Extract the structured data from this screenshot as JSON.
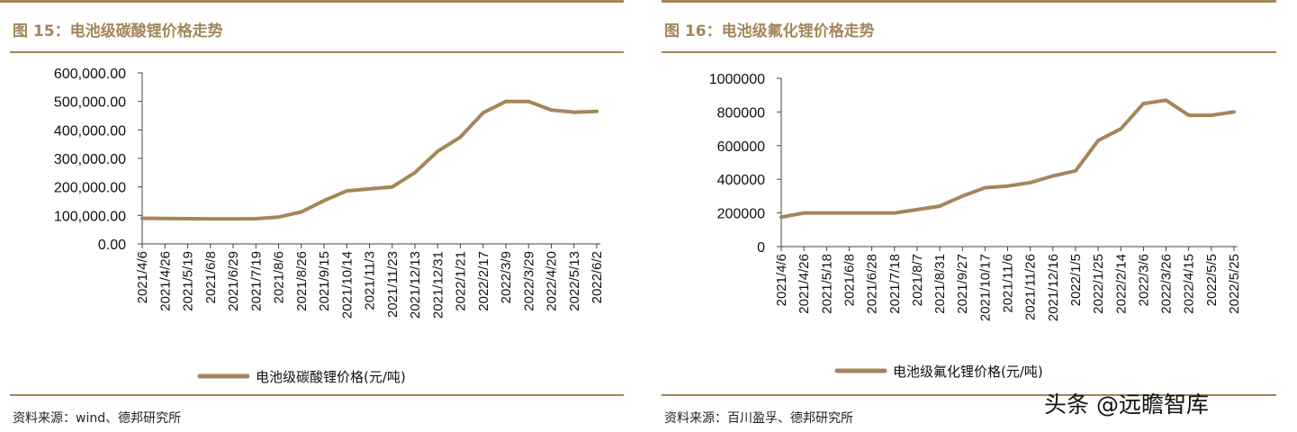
{
  "figures": [
    {
      "title": "图 15：电池级碳酸锂价格走势",
      "source": "资料来源：wind、德邦研究所"
    },
    {
      "title": "图 16：电池级氟化锂价格走势",
      "source": "资料来源：百川盈孚、德邦研究所"
    }
  ],
  "watermark": "头条 @远瞻智库",
  "colors": {
    "accent": "#a4865a",
    "series": "#a4865a"
  },
  "chart_data": [
    {
      "type": "line",
      "title": "",
      "xlabel": "",
      "ylabel": "",
      "ylim": [
        0,
        600000
      ],
      "y_ticks": [
        "0.00",
        "100,000.00",
        "200,000.00",
        "300,000.00",
        "400,000.00",
        "500,000.00",
        "600,000.00"
      ],
      "x_ticks": [
        "2021/4/6",
        "2021/4/26",
        "2021/5/19",
        "2021/6/8",
        "2021/6/29",
        "2021/7/19",
        "2021/8/6",
        "2021/8/26",
        "2021/9/15",
        "2021/10/14",
        "2021/11/3",
        "2021/11/23",
        "2021/12/13",
        "2021/12/31",
        "2022/1/21",
        "2022/2/17",
        "2022/3/9",
        "2022/3/29",
        "2022/4/20",
        "2022/5/13",
        "2022/6/2"
      ],
      "legend_position": "bottom",
      "series": [
        {
          "name": "电池级碳酸锂价格(元/吨)",
          "values": [
            90000,
            89000,
            88500,
            88000,
            88000,
            88500,
            94000,
            112000,
            152000,
            186000,
            193000,
            200000,
            250000,
            325000,
            375000,
            460000,
            500000,
            500000,
            470000,
            462000,
            465000
          ]
        }
      ]
    },
    {
      "type": "line",
      "title": "",
      "xlabel": "",
      "ylabel": "",
      "ylim": [
        0,
        1000000
      ],
      "y_ticks": [
        "0",
        "200000",
        "400000",
        "600000",
        "800000",
        "1000000"
      ],
      "x_ticks": [
        "2021/4/6",
        "2021/4/26",
        "2021/5/18",
        "2021/6/8",
        "2021/6/28",
        "2021/7/18",
        "2021/8/7",
        "2021/8/31",
        "2021/9/27",
        "2021/10/17",
        "2021/11/6",
        "2021/11/26",
        "2021/12/16",
        "2022/1/5",
        "2022/1/25",
        "2022/2/14",
        "2022/3/6",
        "2022/3/26",
        "2022/4/15",
        "2022/5/5",
        "2022/5/25"
      ],
      "legend_position": "bottom",
      "series": [
        {
          "name": "电池级氟化锂价格(元/吨)",
          "values": [
            175000,
            200000,
            200000,
            200000,
            200000,
            200000,
            220000,
            240000,
            300000,
            350000,
            360000,
            380000,
            420000,
            450000,
            630000,
            700000,
            850000,
            870000,
            780000,
            780000,
            800000
          ]
        }
      ]
    }
  ]
}
